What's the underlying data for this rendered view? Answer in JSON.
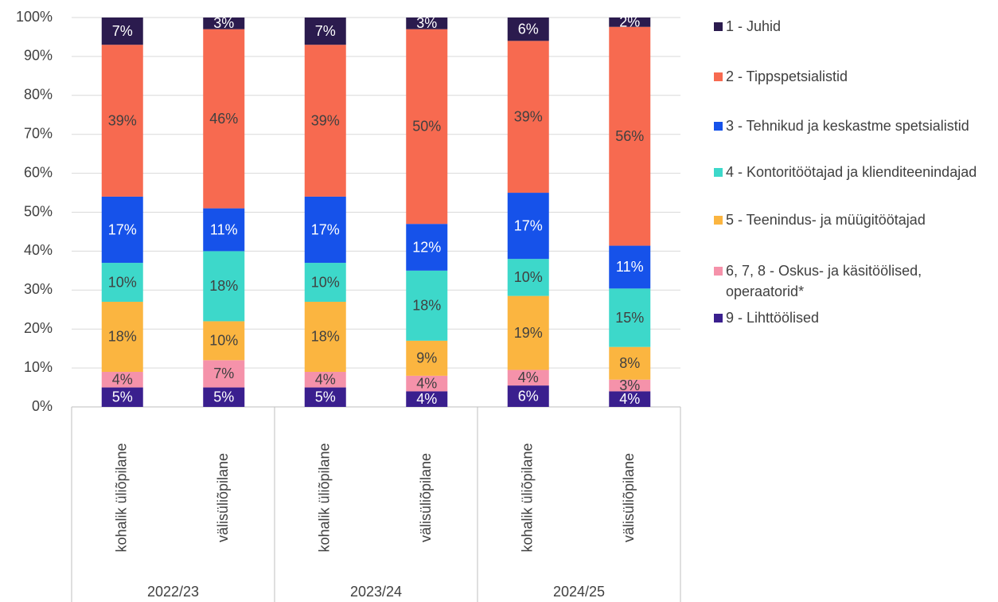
{
  "chart_data": {
    "type": "stacked_bar",
    "groups": [
      "2022/23",
      "2023/24",
      "2024/25"
    ],
    "categories": [
      "kohalik üliõpilane",
      "välisüliõpilane",
      "kohalik üliõpilane",
      "välisüliõpilane",
      "kohalik üliõpilane",
      "välisüliõpilane"
    ],
    "series": [
      {
        "name": "1 - Juhid",
        "color": "#2b1b4e",
        "values": [
          7,
          3,
          7,
          3,
          6,
          2.4
        ],
        "value_labels": [
          "7%",
          "3%",
          "7%",
          "3%",
          "6%",
          "2%"
        ]
      },
      {
        "name": "2 - Tippspetsialistid",
        "color": "#f76a50",
        "values": [
          39,
          46,
          39,
          50,
          39,
          56.2
        ],
        "value_labels": [
          "39%",
          "46%",
          "39%",
          "50%",
          "39%",
          "56%"
        ]
      },
      {
        "name": "3 - Tehnikud ja keskastme spetsialistid",
        "color": "#1652ea",
        "values": [
          17,
          11,
          17,
          12,
          17,
          11
        ],
        "value_labels": [
          "17%",
          "11%",
          "17%",
          "12%",
          "17%",
          "11%"
        ]
      },
      {
        "name": "4 - Kontoritöötajad ja klienditeenindajad",
        "color": "#3dd8ca",
        "values": [
          10,
          18,
          10,
          18,
          9.5,
          15
        ],
        "value_labels": [
          "10%",
          "18%",
          "10%",
          "18%",
          "10%",
          "15%"
        ]
      },
      {
        "name": "5 - Teenindus- ja müügitöötajad",
        "color": "#fbb540",
        "values": [
          18,
          10,
          18,
          9,
          19,
          8.4
        ],
        "value_labels": [
          "18%",
          "10%",
          "18%",
          "9%",
          "19%",
          "8%"
        ]
      },
      {
        "name": "6, 7, 8 - Oskus- ja käsitöölised, operaatorid*",
        "color": "#f592aa",
        "values": [
          4,
          7,
          4,
          4,
          4,
          3
        ],
        "value_labels": [
          "4%",
          "7%",
          "4%",
          "4%",
          "4%",
          "3%"
        ]
      },
      {
        "name": "9 - Lihttöölised",
        "color": "#3a1f8e",
        "values": [
          5,
          5,
          5,
          4,
          5.5,
          4
        ],
        "value_labels": [
          "5%",
          "5%",
          "5%",
          "4%",
          "6%",
          "4%"
        ]
      }
    ],
    "ylim": [
      0,
      100
    ],
    "yticks": [
      {
        "value": 0,
        "label": "0%"
      },
      {
        "value": 10,
        "label": "10%"
      },
      {
        "value": 20,
        "label": "20%"
      },
      {
        "value": 30,
        "label": "30%"
      },
      {
        "value": 40,
        "label": "40%"
      },
      {
        "value": 50,
        "label": "50%"
      },
      {
        "value": 60,
        "label": "60%"
      },
      {
        "value": 70,
        "label": "70%"
      },
      {
        "value": 80,
        "label": "80%"
      },
      {
        "value": 90,
        "label": "90%"
      },
      {
        "value": 100,
        "label": "100%"
      }
    ],
    "grid": true,
    "legend": "right"
  }
}
